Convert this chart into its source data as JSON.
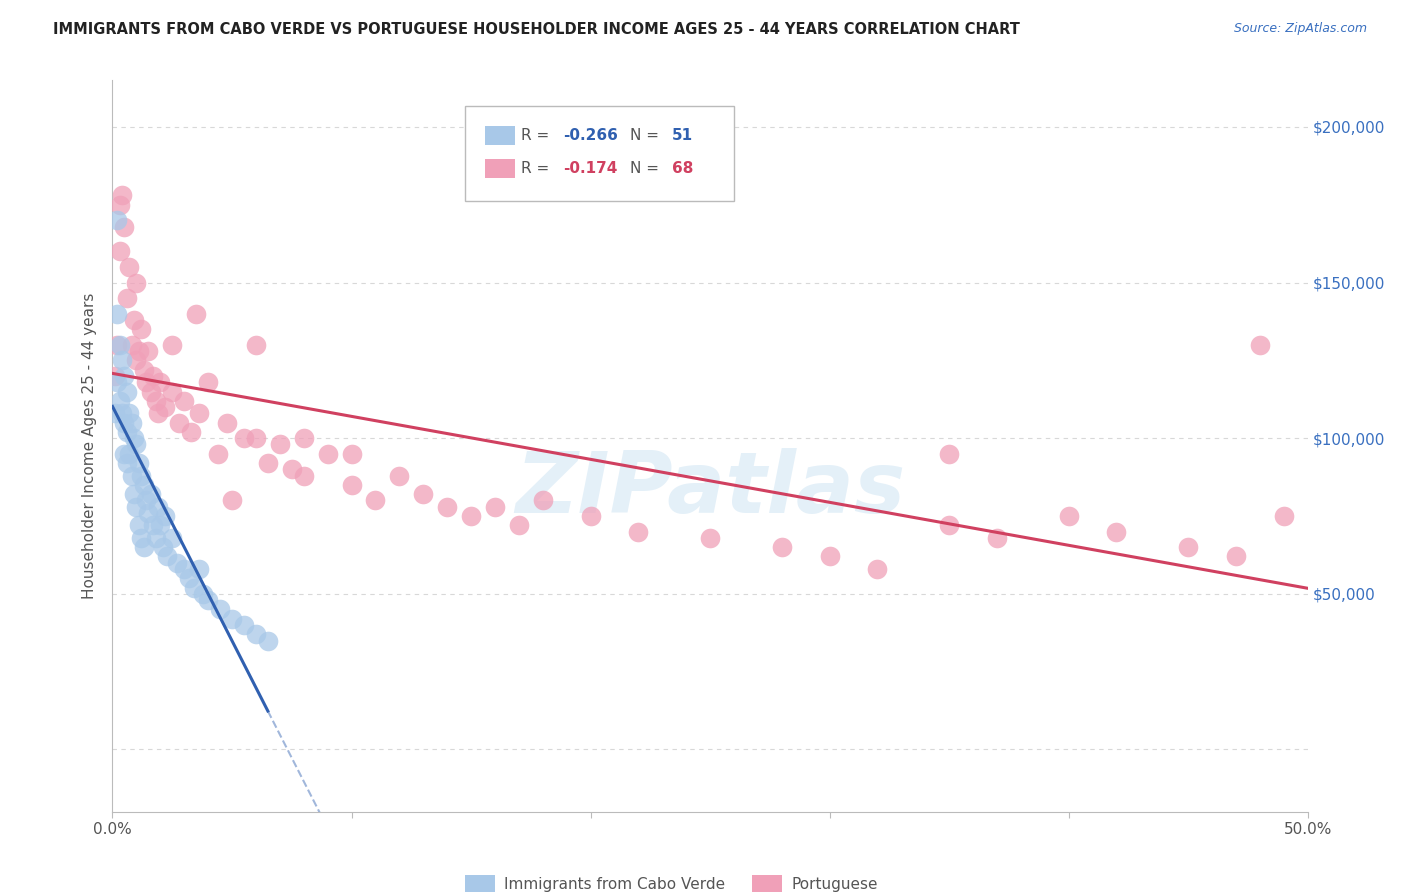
{
  "title": "IMMIGRANTS FROM CABO VERDE VS PORTUGUESE HOUSEHOLDER INCOME AGES 25 - 44 YEARS CORRELATION CHART",
  "source": "Source: ZipAtlas.com",
  "ylabel": "Householder Income Ages 25 - 44 years",
  "xlim": [
    0.0,
    0.5
  ],
  "ylim": [
    -20000,
    215000
  ],
  "yticks": [
    0,
    50000,
    100000,
    150000,
    200000
  ],
  "ytick_labels": [
    "",
    "$50,000",
    "$100,000",
    "$150,000",
    "$200,000"
  ],
  "xticks": [
    0.0,
    0.1,
    0.2,
    0.3,
    0.4,
    0.5
  ],
  "xtick_labels": [
    "0.0%",
    "",
    "",
    "",
    "",
    "50.0%"
  ],
  "background_color": "#ffffff",
  "grid_color": "#d8d8d8",
  "cabo_verde_color": "#a8c8e8",
  "portuguese_color": "#f0a0b8",
  "cabo_verde_line_color": "#3060b0",
  "portuguese_line_color": "#d04060",
  "cabo_verde_R": -0.266,
  "cabo_verde_N": 51,
  "portuguese_R": -0.174,
  "portuguese_N": 68,
  "watermark": "ZIPatlas",
  "cabo_verde_x": [
    0.001,
    0.002,
    0.002,
    0.003,
    0.003,
    0.004,
    0.004,
    0.005,
    0.005,
    0.005,
    0.006,
    0.006,
    0.006,
    0.007,
    0.007,
    0.008,
    0.008,
    0.009,
    0.009,
    0.01,
    0.01,
    0.011,
    0.011,
    0.012,
    0.012,
    0.013,
    0.013,
    0.014,
    0.015,
    0.016,
    0.017,
    0.018,
    0.019,
    0.02,
    0.021,
    0.022,
    0.023,
    0.025,
    0.027,
    0.03,
    0.032,
    0.034,
    0.036,
    0.038,
    0.04,
    0.045,
    0.05,
    0.055,
    0.06,
    0.065,
    0.002
  ],
  "cabo_verde_y": [
    108000,
    140000,
    118000,
    130000,
    112000,
    125000,
    108000,
    120000,
    105000,
    95000,
    115000,
    102000,
    92000,
    108000,
    95000,
    105000,
    88000,
    100000,
    82000,
    98000,
    78000,
    92000,
    72000,
    88000,
    68000,
    85000,
    65000,
    80000,
    76000,
    82000,
    72000,
    68000,
    78000,
    72000,
    65000,
    75000,
    62000,
    68000,
    60000,
    58000,
    55000,
    52000,
    58000,
    50000,
    48000,
    45000,
    42000,
    40000,
    37000,
    35000,
    170000
  ],
  "portuguese_x": [
    0.001,
    0.002,
    0.003,
    0.004,
    0.005,
    0.006,
    0.007,
    0.008,
    0.009,
    0.01,
    0.011,
    0.012,
    0.013,
    0.014,
    0.015,
    0.016,
    0.017,
    0.018,
    0.019,
    0.02,
    0.022,
    0.025,
    0.028,
    0.03,
    0.033,
    0.036,
    0.04,
    0.044,
    0.048,
    0.055,
    0.06,
    0.065,
    0.07,
    0.075,
    0.08,
    0.09,
    0.1,
    0.11,
    0.12,
    0.13,
    0.14,
    0.15,
    0.16,
    0.17,
    0.18,
    0.2,
    0.22,
    0.25,
    0.28,
    0.3,
    0.32,
    0.35,
    0.37,
    0.4,
    0.42,
    0.45,
    0.47,
    0.49,
    0.003,
    0.01,
    0.025,
    0.035,
    0.05,
    0.06,
    0.08,
    0.1,
    0.35,
    0.48
  ],
  "portuguese_y": [
    120000,
    130000,
    160000,
    178000,
    168000,
    145000,
    155000,
    130000,
    138000,
    125000,
    128000,
    135000,
    122000,
    118000,
    128000,
    115000,
    120000,
    112000,
    108000,
    118000,
    110000,
    115000,
    105000,
    112000,
    102000,
    108000,
    118000,
    95000,
    105000,
    100000,
    130000,
    92000,
    98000,
    90000,
    88000,
    95000,
    85000,
    80000,
    88000,
    82000,
    78000,
    75000,
    78000,
    72000,
    80000,
    75000,
    70000,
    68000,
    65000,
    62000,
    58000,
    72000,
    68000,
    75000,
    70000,
    65000,
    62000,
    75000,
    175000,
    150000,
    130000,
    140000,
    80000,
    100000,
    100000,
    95000,
    95000,
    130000
  ]
}
